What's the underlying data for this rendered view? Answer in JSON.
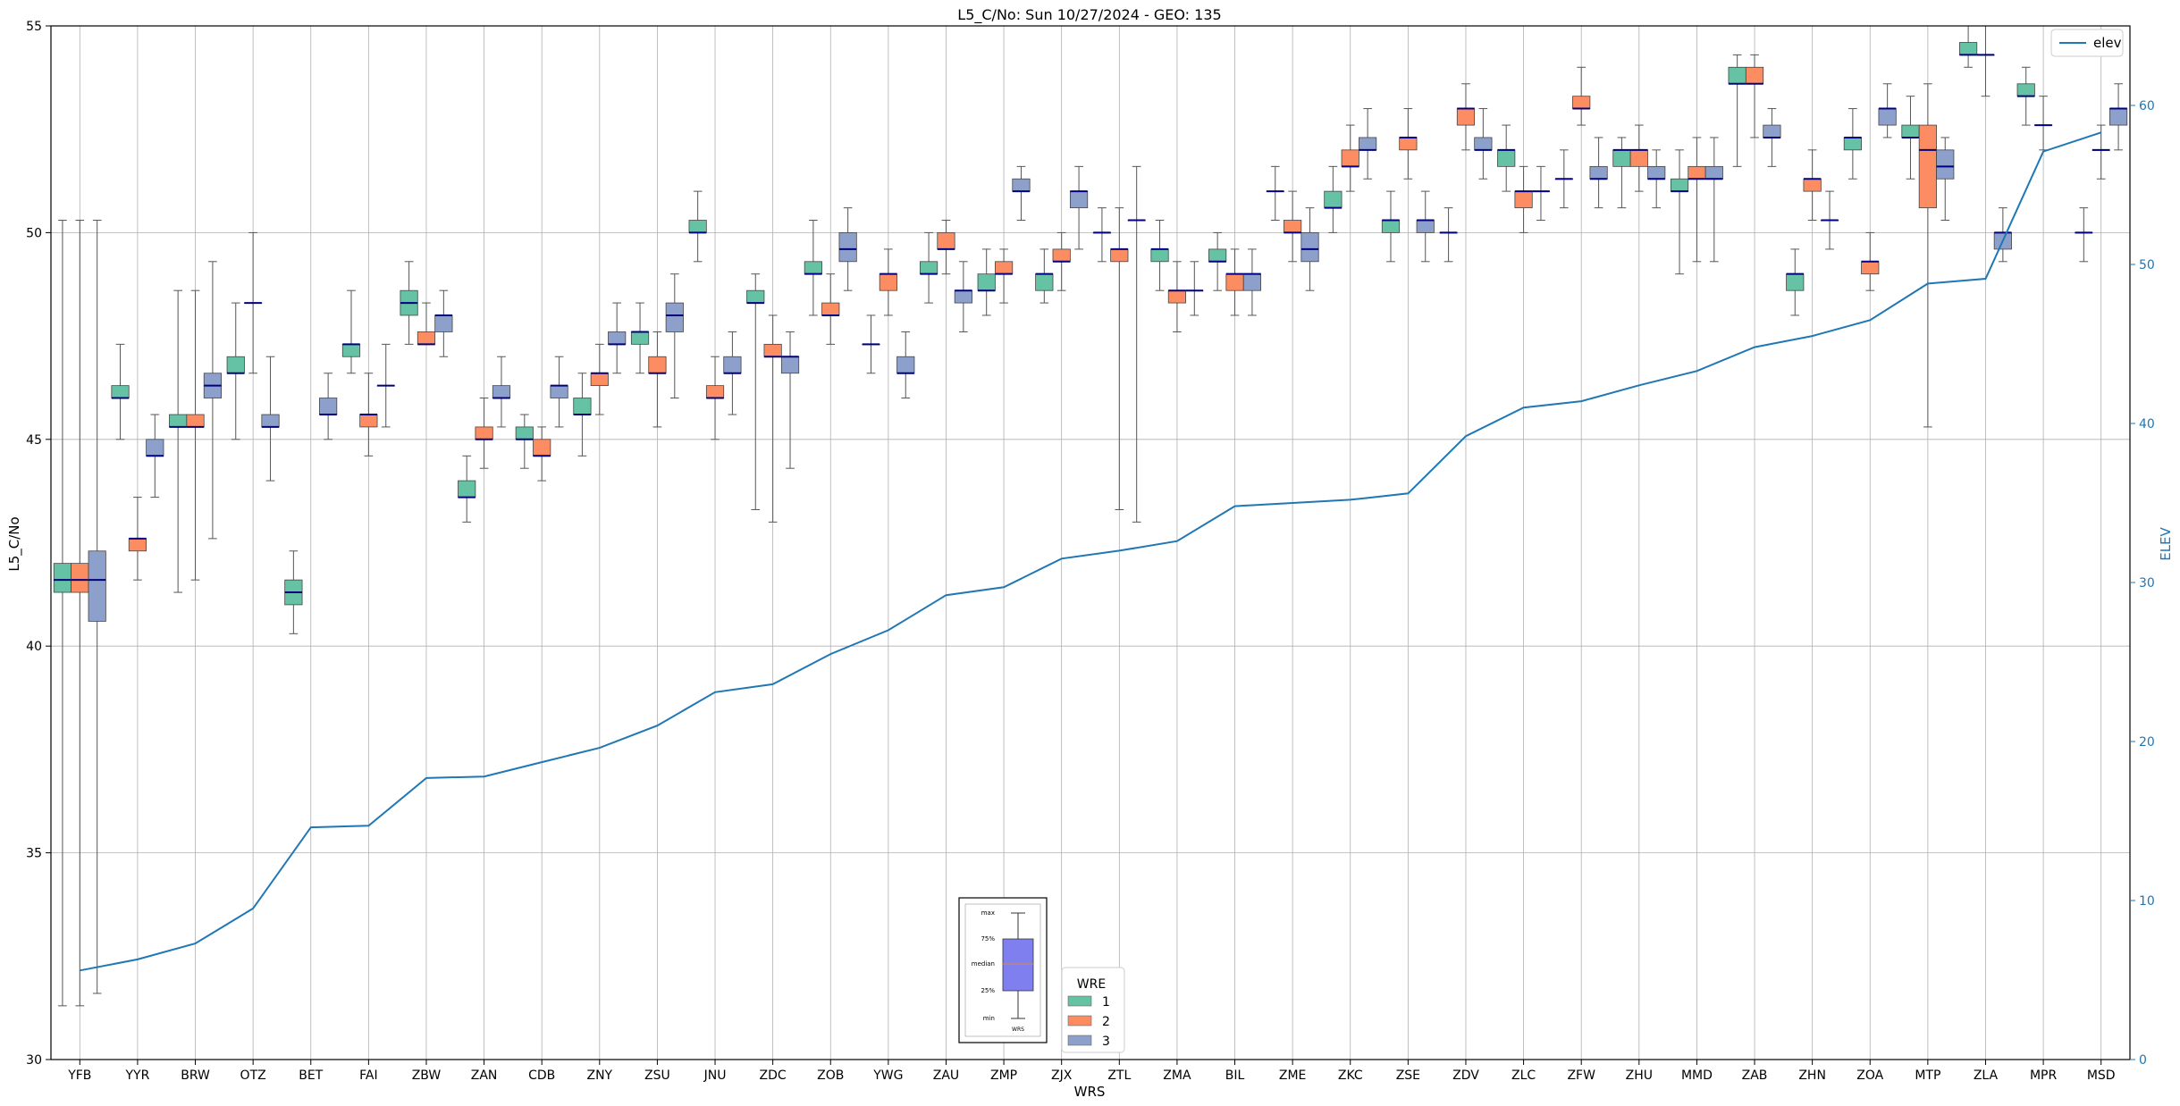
{
  "chart_data": {
    "type": "box",
    "title": "L5_C/No: Sun 10/27/2024 - GEO: 135",
    "xlabel": "WRS",
    "ylabel": "L5_C/No",
    "y2label": "ELEV",
    "ylim": [
      30,
      55
    ],
    "y2lim": [
      0,
      65
    ],
    "yticks": [
      30,
      35,
      40,
      45,
      50,
      55
    ],
    "y2ticks": [
      0,
      10,
      20,
      30,
      40,
      50,
      60
    ],
    "grid": true,
    "categories": [
      "YFB",
      "YYR",
      "BRW",
      "OTZ",
      "BET",
      "FAI",
      "ZBW",
      "ZAN",
      "CDB",
      "ZNY",
      "ZSU",
      "JNU",
      "ZDC",
      "ZOB",
      "YWG",
      "ZAU",
      "ZMP",
      "ZJX",
      "ZTL",
      "ZMA",
      "BIL",
      "ZME",
      "ZKC",
      "ZSE",
      "ZDV",
      "ZLC",
      "ZFW",
      "ZHU",
      "MMD",
      "ZAB",
      "ZHN",
      "ZOA",
      "MTP",
      "ZLA",
      "MPR",
      "MSD"
    ],
    "legend_wre": {
      "title": "WRE",
      "placement": "bottom-center",
      "entries": [
        "1",
        "2",
        "3"
      ]
    },
    "legend_elev": {
      "label": "elev",
      "placement": "top-right"
    },
    "series_colors": {
      "1": "#66c2a5",
      "2": "#fc8d62",
      "3": "#8da0cb",
      "elev": "#1f77b4",
      "median": "#000080"
    },
    "box_key": {
      "labels": [
        "max",
        "75%",
        "median",
        "25%",
        "min"
      ],
      "xlabel": "WRS"
    },
    "boxes": [
      {
        "cat": "YFB",
        "wre": 1,
        "min": 31.3,
        "q1": 41.3,
        "med": 41.6,
        "q3": 42.0,
        "max": 50.3
      },
      {
        "cat": "YFB",
        "wre": 2,
        "min": 31.3,
        "q1": 41.3,
        "med": 41.6,
        "q3": 42.0,
        "max": 50.3
      },
      {
        "cat": "YFB",
        "wre": 3,
        "min": 31.6,
        "q1": 40.6,
        "med": 41.6,
        "q3": 42.3,
        "max": 50.3
      },
      {
        "cat": "YYR",
        "wre": 1,
        "min": 45.0,
        "q1": 46.0,
        "med": 46.0,
        "q3": 46.3,
        "max": 47.3
      },
      {
        "cat": "YYR",
        "wre": 2,
        "min": 41.6,
        "q1": 42.3,
        "med": 42.6,
        "q3": 42.6,
        "max": 43.6
      },
      {
        "cat": "YYR",
        "wre": 3,
        "min": 43.6,
        "q1": 44.6,
        "med": 44.6,
        "q3": 45.0,
        "max": 45.6
      },
      {
        "cat": "BRW",
        "wre": 1,
        "min": 41.3,
        "q1": 45.3,
        "med": 45.3,
        "q3": 45.6,
        "max": 48.6
      },
      {
        "cat": "BRW",
        "wre": 2,
        "min": 41.6,
        "q1": 45.3,
        "med": 45.3,
        "q3": 45.6,
        "max": 48.6
      },
      {
        "cat": "BRW",
        "wre": 3,
        "min": 42.6,
        "q1": 46.0,
        "med": 46.3,
        "q3": 46.6,
        "max": 49.3
      },
      {
        "cat": "OTZ",
        "wre": 1,
        "min": 45.0,
        "q1": 46.6,
        "med": 46.6,
        "q3": 47.0,
        "max": 48.3
      },
      {
        "cat": "OTZ",
        "wre": 2,
        "min": 46.6,
        "q1": 48.3,
        "med": 48.3,
        "q3": 48.3,
        "max": 50.0
      },
      {
        "cat": "OTZ",
        "wre": 3,
        "min": 44.0,
        "q1": 45.3,
        "med": 45.3,
        "q3": 45.6,
        "max": 47.0
      },
      {
        "cat": "BET",
        "wre": 1,
        "min": 40.3,
        "q1": 41.0,
        "med": 41.3,
        "q3": 41.6,
        "max": 42.3
      },
      {
        "cat": "BET",
        "wre": 3,
        "min": 45.0,
        "q1": 45.6,
        "med": 45.6,
        "q3": 46.0,
        "max": 46.6
      },
      {
        "cat": "FAI",
        "wre": 1,
        "min": 46.6,
        "q1": 47.0,
        "med": 47.3,
        "q3": 47.3,
        "max": 48.6
      },
      {
        "cat": "FAI",
        "wre": 2,
        "min": 44.6,
        "q1": 45.3,
        "med": 45.6,
        "q3": 45.6,
        "max": 46.6
      },
      {
        "cat": "FAI",
        "wre": 3,
        "min": 45.3,
        "q1": 46.3,
        "med": 46.3,
        "q3": 46.3,
        "max": 47.3
      },
      {
        "cat": "ZBW",
        "wre": 1,
        "min": 47.3,
        "q1": 48.0,
        "med": 48.3,
        "q3": 48.6,
        "max": 49.3
      },
      {
        "cat": "ZBW",
        "wre": 2,
        "min": 47.3,
        "q1": 47.3,
        "med": 47.3,
        "q3": 47.6,
        "max": 48.3
      },
      {
        "cat": "ZBW",
        "wre": 3,
        "min": 47.0,
        "q1": 47.6,
        "med": 48.0,
        "q3": 48.0,
        "max": 48.6
      },
      {
        "cat": "ZAN",
        "wre": 1,
        "min": 43.0,
        "q1": 43.6,
        "med": 43.6,
        "q3": 44.0,
        "max": 44.6
      },
      {
        "cat": "ZAN",
        "wre": 2,
        "min": 44.3,
        "q1": 45.0,
        "med": 45.0,
        "q3": 45.3,
        "max": 46.0
      },
      {
        "cat": "ZAN",
        "wre": 3,
        "min": 45.3,
        "q1": 46.0,
        "med": 46.0,
        "q3": 46.3,
        "max": 47.0
      },
      {
        "cat": "CDB",
        "wre": 1,
        "min": 44.3,
        "q1": 45.0,
        "med": 45.0,
        "q3": 45.3,
        "max": 45.6
      },
      {
        "cat": "CDB",
        "wre": 2,
        "min": 44.0,
        "q1": 44.6,
        "med": 44.6,
        "q3": 45.0,
        "max": 45.3
      },
      {
        "cat": "CDB",
        "wre": 3,
        "min": 45.3,
        "q1": 46.0,
        "med": 46.3,
        "q3": 46.3,
        "max": 47.0
      },
      {
        "cat": "ZNY",
        "wre": 1,
        "min": 44.6,
        "q1": 45.6,
        "med": 45.6,
        "q3": 46.0,
        "max": 46.6
      },
      {
        "cat": "ZNY",
        "wre": 2,
        "min": 45.6,
        "q1": 46.3,
        "med": 46.6,
        "q3": 46.6,
        "max": 47.3
      },
      {
        "cat": "ZNY",
        "wre": 3,
        "min": 46.6,
        "q1": 47.3,
        "med": 47.3,
        "q3": 47.6,
        "max": 48.3
      },
      {
        "cat": "ZSU",
        "wre": 1,
        "min": 46.6,
        "q1": 47.3,
        "med": 47.6,
        "q3": 47.6,
        "max": 48.3
      },
      {
        "cat": "ZSU",
        "wre": 2,
        "min": 45.3,
        "q1": 46.6,
        "med": 46.6,
        "q3": 47.0,
        "max": 47.6
      },
      {
        "cat": "ZSU",
        "wre": 3,
        "min": 46.0,
        "q1": 47.6,
        "med": 48.0,
        "q3": 48.3,
        "max": 49.0
      },
      {
        "cat": "JNU",
        "wre": 1,
        "min": 49.3,
        "q1": 50.0,
        "med": 50.0,
        "q3": 50.3,
        "max": 51.0
      },
      {
        "cat": "JNU",
        "wre": 2,
        "min": 45.0,
        "q1": 46.0,
        "med": 46.0,
        "q3": 46.3,
        "max": 47.0
      },
      {
        "cat": "JNU",
        "wre": 3,
        "min": 45.6,
        "q1": 46.6,
        "med": 46.6,
        "q3": 47.0,
        "max": 47.6
      },
      {
        "cat": "ZDC",
        "wre": 1,
        "min": 43.3,
        "q1": 48.3,
        "med": 48.3,
        "q3": 48.6,
        "max": 49.0
      },
      {
        "cat": "ZDC",
        "wre": 2,
        "min": 43.0,
        "q1": 47.0,
        "med": 47.0,
        "q3": 47.3,
        "max": 48.0
      },
      {
        "cat": "ZDC",
        "wre": 3,
        "min": 44.3,
        "q1": 46.6,
        "med": 47.0,
        "q3": 47.0,
        "max": 47.6
      },
      {
        "cat": "ZOB",
        "wre": 1,
        "min": 48.0,
        "q1": 49.0,
        "med": 49.0,
        "q3": 49.3,
        "max": 50.3
      },
      {
        "cat": "ZOB",
        "wre": 2,
        "min": 47.3,
        "q1": 48.0,
        "med": 48.0,
        "q3": 48.3,
        "max": 49.0
      },
      {
        "cat": "ZOB",
        "wre": 3,
        "min": 48.6,
        "q1": 49.3,
        "med": 49.6,
        "q3": 50.0,
        "max": 50.6
      },
      {
        "cat": "YWG",
        "wre": 1,
        "min": 46.6,
        "q1": 47.3,
        "med": 47.3,
        "q3": 47.3,
        "max": 48.0
      },
      {
        "cat": "YWG",
        "wre": 2,
        "min": 48.0,
        "q1": 48.6,
        "med": 49.0,
        "q3": 49.0,
        "max": 49.6
      },
      {
        "cat": "YWG",
        "wre": 3,
        "min": 46.0,
        "q1": 46.6,
        "med": 46.6,
        "q3": 47.0,
        "max": 47.6
      },
      {
        "cat": "ZAU",
        "wre": 1,
        "min": 48.3,
        "q1": 49.0,
        "med": 49.0,
        "q3": 49.3,
        "max": 50.0
      },
      {
        "cat": "ZAU",
        "wre": 2,
        "min": 49.0,
        "q1": 49.6,
        "med": 49.6,
        "q3": 50.0,
        "max": 50.3
      },
      {
        "cat": "ZAU",
        "wre": 3,
        "min": 47.6,
        "q1": 48.3,
        "med": 48.6,
        "q3": 48.6,
        "max": 49.3
      },
      {
        "cat": "ZMP",
        "wre": 1,
        "min": 48.0,
        "q1": 48.6,
        "med": 48.6,
        "q3": 49.0,
        "max": 49.6
      },
      {
        "cat": "ZMP",
        "wre": 2,
        "min": 48.3,
        "q1": 49.0,
        "med": 49.0,
        "q3": 49.3,
        "max": 49.6
      },
      {
        "cat": "ZMP",
        "wre": 3,
        "min": 50.3,
        "q1": 51.0,
        "med": 51.0,
        "q3": 51.3,
        "max": 51.6
      },
      {
        "cat": "ZJX",
        "wre": 1,
        "min": 48.3,
        "q1": 48.6,
        "med": 49.0,
        "q3": 49.0,
        "max": 49.6
      },
      {
        "cat": "ZJX",
        "wre": 2,
        "min": 48.6,
        "q1": 49.3,
        "med": 49.3,
        "q3": 49.6,
        "max": 50.0
      },
      {
        "cat": "ZJX",
        "wre": 3,
        "min": 49.6,
        "q1": 50.6,
        "med": 51.0,
        "q3": 51.0,
        "max": 51.6
      },
      {
        "cat": "ZTL",
        "wre": 1,
        "min": 49.3,
        "q1": 50.0,
        "med": 50.0,
        "q3": 50.0,
        "max": 50.6
      },
      {
        "cat": "ZTL",
        "wre": 2,
        "min": 43.3,
        "q1": 49.3,
        "med": 49.6,
        "q3": 49.6,
        "max": 50.6
      },
      {
        "cat": "ZTL",
        "wre": 3,
        "min": 43.0,
        "q1": 50.3,
        "med": 50.3,
        "q3": 50.3,
        "max": 51.6
      },
      {
        "cat": "ZMA",
        "wre": 1,
        "min": 48.6,
        "q1": 49.3,
        "med": 49.6,
        "q3": 49.6,
        "max": 50.3
      },
      {
        "cat": "ZMA",
        "wre": 2,
        "min": 47.6,
        "q1": 48.3,
        "med": 48.6,
        "q3": 48.6,
        "max": 49.3
      },
      {
        "cat": "ZMA",
        "wre": 3,
        "min": 48.0,
        "q1": 48.6,
        "med": 48.6,
        "q3": 48.6,
        "max": 49.3
      },
      {
        "cat": "BIL",
        "wre": 1,
        "min": 48.6,
        "q1": 49.3,
        "med": 49.3,
        "q3": 49.6,
        "max": 50.0
      },
      {
        "cat": "BIL",
        "wre": 2,
        "min": 48.0,
        "q1": 48.6,
        "med": 49.0,
        "q3": 49.0,
        "max": 49.6
      },
      {
        "cat": "BIL",
        "wre": 3,
        "min": 48.0,
        "q1": 48.6,
        "med": 49.0,
        "q3": 49.0,
        "max": 49.6
      },
      {
        "cat": "ZME",
        "wre": 1,
        "min": 50.3,
        "q1": 51.0,
        "med": 51.0,
        "q3": 51.0,
        "max": 51.6
      },
      {
        "cat": "ZME",
        "wre": 2,
        "min": 49.3,
        "q1": 50.0,
        "med": 50.0,
        "q3": 50.3,
        "max": 51.0
      },
      {
        "cat": "ZME",
        "wre": 3,
        "min": 48.6,
        "q1": 49.3,
        "med": 49.6,
        "q3": 50.0,
        "max": 50.6
      },
      {
        "cat": "ZKC",
        "wre": 1,
        "min": 50.0,
        "q1": 50.6,
        "med": 50.6,
        "q3": 51.0,
        "max": 51.6
      },
      {
        "cat": "ZKC",
        "wre": 2,
        "min": 51.0,
        "q1": 51.6,
        "med": 51.6,
        "q3": 52.0,
        "max": 52.6
      },
      {
        "cat": "ZKC",
        "wre": 3,
        "min": 51.3,
        "q1": 52.0,
        "med": 52.0,
        "q3": 52.3,
        "max": 53.0
      },
      {
        "cat": "ZSE",
        "wre": 1,
        "min": 49.3,
        "q1": 50.0,
        "med": 50.3,
        "q3": 50.3,
        "max": 51.0
      },
      {
        "cat": "ZSE",
        "wre": 2,
        "min": 51.3,
        "q1": 52.0,
        "med": 52.3,
        "q3": 52.3,
        "max": 53.0
      },
      {
        "cat": "ZSE",
        "wre": 3,
        "min": 49.3,
        "q1": 50.0,
        "med": 50.3,
        "q3": 50.3,
        "max": 51.0
      },
      {
        "cat": "ZDV",
        "wre": 1,
        "min": 49.3,
        "q1": 50.0,
        "med": 50.0,
        "q3": 50.0,
        "max": 50.6
      },
      {
        "cat": "ZDV",
        "wre": 2,
        "min": 52.0,
        "q1": 52.6,
        "med": 53.0,
        "q3": 53.0,
        "max": 53.6
      },
      {
        "cat": "ZDV",
        "wre": 3,
        "min": 51.3,
        "q1": 52.0,
        "med": 52.0,
        "q3": 52.3,
        "max": 53.0
      },
      {
        "cat": "ZLC",
        "wre": 1,
        "min": 51.0,
        "q1": 51.6,
        "med": 52.0,
        "q3": 52.0,
        "max": 52.6
      },
      {
        "cat": "ZLC",
        "wre": 2,
        "min": 50.0,
        "q1": 50.6,
        "med": 51.0,
        "q3": 51.0,
        "max": 51.6
      },
      {
        "cat": "ZLC",
        "wre": 3,
        "min": 50.3,
        "q1": 51.0,
        "med": 51.0,
        "q3": 51.0,
        "max": 51.6
      },
      {
        "cat": "ZFW",
        "wre": 1,
        "min": 50.6,
        "q1": 51.3,
        "med": 51.3,
        "q3": 51.3,
        "max": 52.0
      },
      {
        "cat": "ZFW",
        "wre": 2,
        "min": 52.6,
        "q1": 53.0,
        "med": 53.0,
        "q3": 53.3,
        "max": 54.0
      },
      {
        "cat": "ZFW",
        "wre": 3,
        "min": 50.6,
        "q1": 51.3,
        "med": 51.3,
        "q3": 51.6,
        "max": 52.3
      },
      {
        "cat": "ZHU",
        "wre": 1,
        "min": 50.6,
        "q1": 51.6,
        "med": 52.0,
        "q3": 52.0,
        "max": 52.3
      },
      {
        "cat": "ZHU",
        "wre": 2,
        "min": 51.0,
        "q1": 51.6,
        "med": 52.0,
        "q3": 52.0,
        "max": 52.6
      },
      {
        "cat": "ZHU",
        "wre": 3,
        "min": 50.6,
        "q1": 51.3,
        "med": 51.3,
        "q3": 51.6,
        "max": 52.0
      },
      {
        "cat": "MMD",
        "wre": 1,
        "min": 49.0,
        "q1": 51.0,
        "med": 51.0,
        "q3": 51.3,
        "max": 52.0
      },
      {
        "cat": "MMD",
        "wre": 2,
        "min": 49.3,
        "q1": 51.3,
        "med": 51.3,
        "q3": 51.6,
        "max": 52.3
      },
      {
        "cat": "MMD",
        "wre": 3,
        "min": 49.3,
        "q1": 51.3,
        "med": 51.3,
        "q3": 51.6,
        "max": 52.3
      },
      {
        "cat": "ZAB",
        "wre": 1,
        "min": 51.6,
        "q1": 53.6,
        "med": 53.6,
        "q3": 54.0,
        "max": 54.3
      },
      {
        "cat": "ZAB",
        "wre": 2,
        "min": 52.3,
        "q1": 53.6,
        "med": 53.6,
        "q3": 54.0,
        "max": 54.3
      },
      {
        "cat": "ZAB",
        "wre": 3,
        "min": 51.6,
        "q1": 52.3,
        "med": 52.3,
        "q3": 52.6,
        "max": 53.0
      },
      {
        "cat": "ZHN",
        "wre": 1,
        "min": 48.0,
        "q1": 48.6,
        "med": 49.0,
        "q3": 49.0,
        "max": 49.6
      },
      {
        "cat": "ZHN",
        "wre": 2,
        "min": 50.3,
        "q1": 51.0,
        "med": 51.3,
        "q3": 51.3,
        "max": 52.0
      },
      {
        "cat": "ZHN",
        "wre": 3,
        "min": 49.6,
        "q1": 50.3,
        "med": 50.3,
        "q3": 50.3,
        "max": 51.0
      },
      {
        "cat": "ZOA",
        "wre": 1,
        "min": 51.3,
        "q1": 52.0,
        "med": 52.3,
        "q3": 52.3,
        "max": 53.0
      },
      {
        "cat": "ZOA",
        "wre": 2,
        "min": 48.6,
        "q1": 49.0,
        "med": 49.3,
        "q3": 49.3,
        "max": 50.0
      },
      {
        "cat": "ZOA",
        "wre": 3,
        "min": 52.3,
        "q1": 52.6,
        "med": 53.0,
        "q3": 53.0,
        "max": 53.6
      },
      {
        "cat": "MTP",
        "wre": 1,
        "min": 51.3,
        "q1": 52.3,
        "med": 52.3,
        "q3": 52.6,
        "max": 53.3
      },
      {
        "cat": "MTP",
        "wre": 2,
        "min": 45.3,
        "q1": 50.6,
        "med": 52.0,
        "q3": 52.6,
        "max": 53.6
      },
      {
        "cat": "MTP",
        "wre": 3,
        "min": 50.3,
        "q1": 51.3,
        "med": 51.6,
        "q3": 52.0,
        "max": 52.3
      },
      {
        "cat": "ZLA",
        "wre": 1,
        "min": 54.0,
        "q1": 54.3,
        "med": 54.3,
        "q3": 54.6,
        "max": 55.0
      },
      {
        "cat": "ZLA",
        "wre": 2,
        "min": 53.3,
        "q1": 54.3,
        "med": 54.3,
        "q3": 54.3,
        "max": 55.0
      },
      {
        "cat": "ZLA",
        "wre": 3,
        "min": 49.3,
        "q1": 49.6,
        "med": 50.0,
        "q3": 50.0,
        "max": 50.6
      },
      {
        "cat": "MPR",
        "wre": 1,
        "min": 52.6,
        "q1": 53.3,
        "med": 53.3,
        "q3": 53.6,
        "max": 54.0
      },
      {
        "cat": "MPR",
        "wre": 2,
        "min": 52.0,
        "q1": 52.6,
        "med": 52.6,
        "q3": 52.6,
        "max": 53.3
      },
      {
        "cat": "MSD",
        "wre": 1,
        "min": 49.3,
        "q1": 50.0,
        "med": 50.0,
        "q3": 50.0,
        "max": 50.6
      },
      {
        "cat": "MSD",
        "wre": 2,
        "min": 51.3,
        "q1": 52.0,
        "med": 52.0,
        "q3": 52.0,
        "max": 52.6
      },
      {
        "cat": "MSD",
        "wre": 3,
        "min": 52.0,
        "q1": 52.6,
        "med": 53.0,
        "q3": 53.0,
        "max": 53.6
      }
    ],
    "elev": {
      "name": "elev",
      "categories": [
        "YFB",
        "YYR",
        "BRW",
        "OTZ",
        "BET",
        "FAI",
        "ZBW",
        "ZAN",
        "CDB",
        "ZNY",
        "ZSU",
        "JNU",
        "ZDC",
        "ZOB",
        "YWG",
        "ZAU",
        "ZMP",
        "ZJX",
        "ZTL",
        "ZMA",
        "BIL",
        "ZME",
        "ZKC",
        "ZSE",
        "ZDV",
        "ZLC",
        "ZFW",
        "ZHU",
        "MMD",
        "ZAB",
        "ZHN",
        "ZOA",
        "MTP",
        "ZLA",
        "MPR",
        "MSD"
      ],
      "values": [
        5.6,
        6.3,
        7.3,
        9.5,
        14.6,
        14.7,
        17.7,
        17.8,
        18.7,
        19.6,
        21.0,
        23.1,
        23.6,
        25.5,
        27.0,
        29.2,
        29.7,
        31.5,
        32.0,
        32.6,
        34.8,
        35.0,
        35.2,
        35.6,
        39.2,
        41.0,
        41.4,
        42.4,
        43.3,
        44.8,
        45.5,
        46.5,
        48.8,
        49.1,
        57.1,
        58.3
      ]
    }
  }
}
